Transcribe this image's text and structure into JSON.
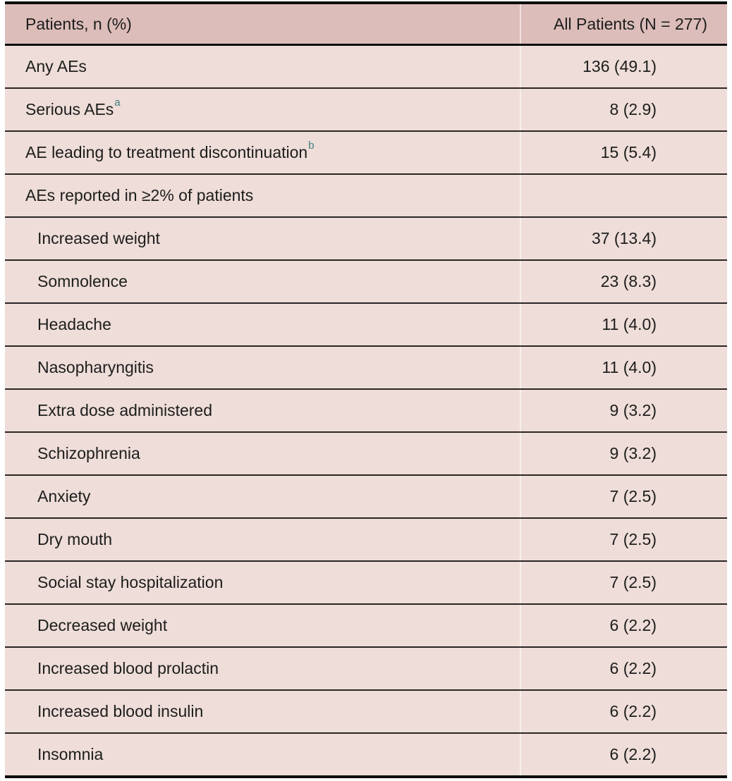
{
  "colors": {
    "page_bg": "#ffffff",
    "header_bg": "#dcbdb9",
    "row_bg": "#eeddd8",
    "grid_line": "#2b2525",
    "frame_line": "#0d0d0d",
    "text": "#1d1d1d",
    "footnote_marker": "#417d80",
    "column_divider": "rgba(255,255,255,0.55)"
  },
  "table": {
    "columns": [
      "Patients, n (%)",
      "All Patients (N = 277)"
    ],
    "rows": [
      {
        "label": "Any AEs",
        "sup": "",
        "value": "136 (49.1)",
        "indent": false
      },
      {
        "label": "Serious AEs",
        "sup": "a",
        "value": "8 (2.9)",
        "indent": false
      },
      {
        "label": "AE leading to treatment discontinuation",
        "sup": "b",
        "value": "15 (5.4)",
        "indent": false
      },
      {
        "label": "AEs reported in ≥2% of patients",
        "sup": "",
        "value": "",
        "indent": false
      },
      {
        "label": "Increased weight",
        "sup": "",
        "value": "37 (13.4)",
        "indent": true
      },
      {
        "label": "Somnolence",
        "sup": "",
        "value": "23 (8.3)",
        "indent": true
      },
      {
        "label": "Headache",
        "sup": "",
        "value": "11 (4.0)",
        "indent": true
      },
      {
        "label": "Nasopharyngitis",
        "sup": "",
        "value": "11 (4.0)",
        "indent": true
      },
      {
        "label": "Extra dose administered",
        "sup": "",
        "value": "9 (3.2)",
        "indent": true
      },
      {
        "label": "Schizophrenia",
        "sup": "",
        "value": "9 (3.2)",
        "indent": true
      },
      {
        "label": "Anxiety",
        "sup": "",
        "value": "7 (2.5)",
        "indent": true
      },
      {
        "label": "Dry mouth",
        "sup": "",
        "value": "7 (2.5)",
        "indent": true
      },
      {
        "label": "Social stay hospitalization",
        "sup": "",
        "value": "7 (2.5)",
        "indent": true
      },
      {
        "label": "Decreased weight",
        "sup": "",
        "value": "6 (2.2)",
        "indent": true
      },
      {
        "label": "Increased blood prolactin",
        "sup": "",
        "value": "6 (2.2)",
        "indent": true
      },
      {
        "label": "Increased blood insulin",
        "sup": "",
        "value": "6 (2.2)",
        "indent": true
      },
      {
        "label": "Insomnia",
        "sup": "",
        "value": "6 (2.2)",
        "indent": true
      }
    ]
  }
}
